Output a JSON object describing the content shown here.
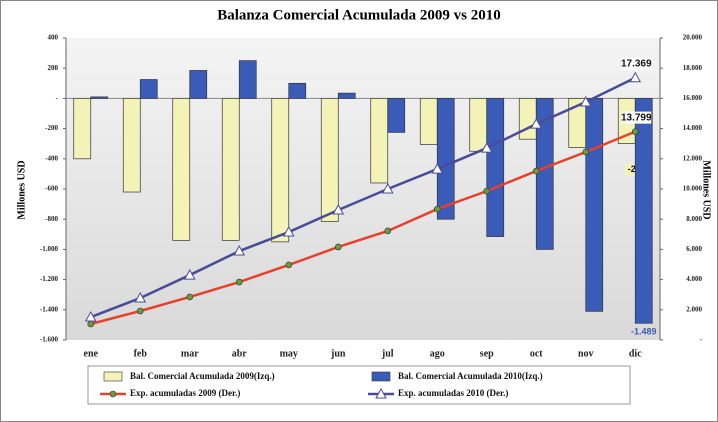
{
  "chart_data": {
    "type": "bar-line",
    "title": "Balanza Comercial Acumulada 2009 vs 2010",
    "y_label": "Millones USD",
    "y2_label": "Millones USD",
    "categories": [
      "ene",
      "feb",
      "mar",
      "abr",
      "may",
      "jun",
      "jul",
      "ago",
      "sep",
      "oct",
      "nov",
      "dic"
    ],
    "ylim": [
      -1600,
      400
    ],
    "yticks": [
      400,
      200,
      {
        "value": 0,
        "label": "-"
      },
      -200,
      -400,
      -600,
      -800,
      {
        "value": -1000,
        "label": "-1.000"
      },
      {
        "value": -1200,
        "label": "-1.200"
      },
      {
        "value": -1400,
        "label": "-1.400"
      },
      {
        "value": -1600,
        "label": "-1.600"
      }
    ],
    "y2lim": [
      0,
      20000
    ],
    "y2ticks": [
      {
        "value": 0,
        "label": "-"
      },
      {
        "value": 2000,
        "label": "2.000"
      },
      {
        "value": 4000,
        "label": "4.000"
      },
      {
        "value": 6000,
        "label": "6.000"
      },
      {
        "value": 8000,
        "label": "8.000"
      },
      {
        "value": 10000,
        "label": "10.000"
      },
      {
        "value": 12000,
        "label": "12.000"
      },
      {
        "value": 14000,
        "label": "14.000"
      },
      {
        "value": 16000,
        "label": "16.000"
      },
      {
        "value": 18000,
        "label": "18.000"
      },
      {
        "value": 20000,
        "label": "20.000"
      }
    ],
    "series": [
      {
        "name": "Bal. Comercial Acumulada 2009(Izq.)",
        "type": "bar",
        "color": "#f3f3b8",
        "values": [
          -400,
          -620,
          -940,
          -940,
          -950,
          -815,
          -560,
          -305,
          -350,
          -270,
          -325,
          -299
        ],
        "value_labels": [
          null,
          null,
          null,
          null,
          null,
          null,
          null,
          null,
          null,
          null,
          null,
          "-299"
        ]
      },
      {
        "name": "Bal. Comercial Acumulada 2010(Izq.)",
        "type": "bar",
        "color": "#3a5cb8",
        "values": [
          10,
          125,
          185,
          250,
          100,
          35,
          -225,
          -800,
          -915,
          -1000,
          -1410,
          -1489
        ],
        "value_labels": [
          null,
          null,
          null,
          null,
          null,
          null,
          null,
          null,
          null,
          null,
          null,
          "-1.489"
        ]
      },
      {
        "name": "Exp. acumuladas 2009 (Der.)",
        "type": "line",
        "axis": "y2",
        "color": "#e8402a",
        "values": [
          1060,
          1920,
          2850,
          3840,
          4970,
          6160,
          7220,
          8670,
          9860,
          11190,
          12450,
          13799
        ],
        "value_labels": [
          null,
          null,
          null,
          null,
          null,
          null,
          null,
          null,
          null,
          null,
          null,
          "13.799"
        ]
      },
      {
        "name": "Exp. acumuladas 2010 (Der.)",
        "type": "line",
        "axis": "y2",
        "color": "#4a4a9a",
        "values": [
          1520,
          2780,
          4300,
          5890,
          7150,
          8610,
          10000,
          11320,
          12710,
          14300,
          15760,
          17369
        ],
        "value_labels": [
          null,
          null,
          null,
          null,
          null,
          null,
          null,
          null,
          null,
          null,
          null,
          "17.369"
        ]
      }
    ]
  }
}
